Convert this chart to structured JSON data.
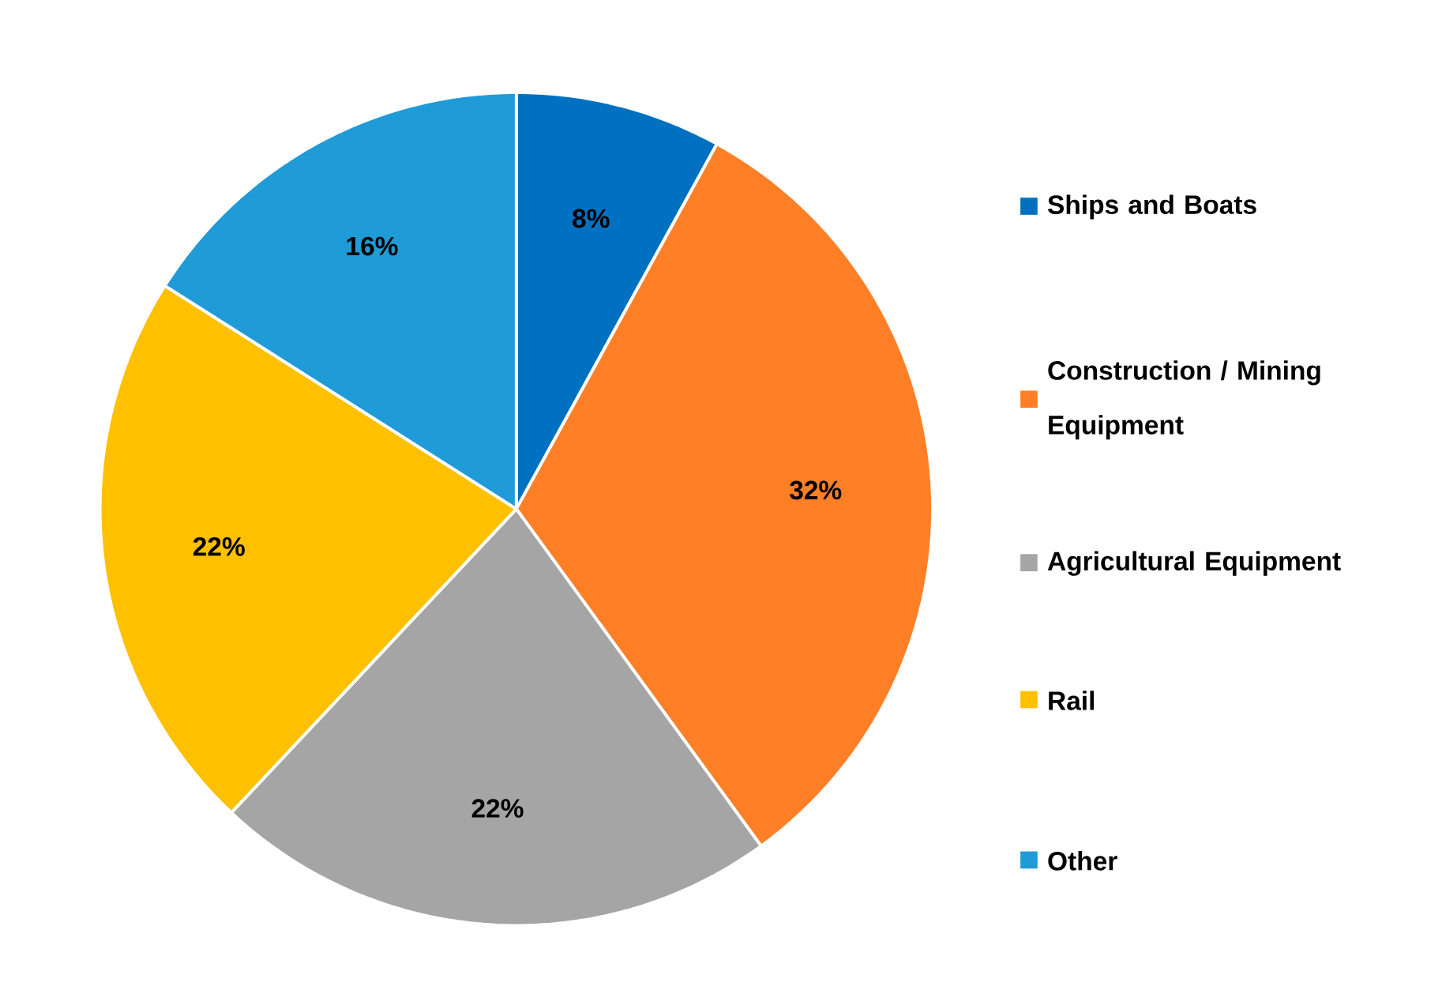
{
  "chart_data": {
    "type": "pie",
    "categories": [
      "Ships and Boats",
      "Construction / Mining Equipment",
      "Agricultural Equipment",
      "Rail",
      "Other"
    ],
    "values": [
      8,
      32,
      22,
      22,
      16
    ],
    "value_labels": [
      "8%",
      "32%",
      "22%",
      "22%",
      "16%"
    ],
    "colors": [
      "#0070c0",
      "#ff7f27",
      "#a5a5a5",
      "#ffc000",
      "#1f9bd7"
    ],
    "legend": "right"
  }
}
